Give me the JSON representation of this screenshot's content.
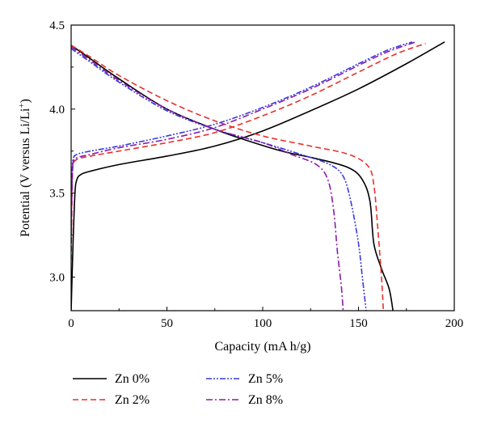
{
  "chart_data": {
    "type": "line",
    "title": "",
    "xlabel": "Capacity (mA h/g)",
    "ylabel": "Potential (V versus Li/Li",
    "ylabel_sup": "+",
    "ylabel_end": ")",
    "xlim": [
      0,
      200
    ],
    "ylim": [
      2.8,
      4.5
    ],
    "xticks": [
      "0",
      "50",
      "100",
      "150",
      "200"
    ],
    "yticks": [
      "3.0",
      "3.5",
      "4.0",
      "4.5"
    ],
    "grid": false,
    "legend_position": "bottom",
    "series": [
      {
        "name": "Zn 0%",
        "color": "#000000",
        "dash": "solid",
        "charge": [
          [
            0,
            2.8
          ],
          [
            1,
            3.2
          ],
          [
            2,
            3.5
          ],
          [
            3,
            3.58
          ],
          [
            5,
            3.61
          ],
          [
            10,
            3.63
          ],
          [
            25,
            3.67
          ],
          [
            50,
            3.72
          ],
          [
            75,
            3.78
          ],
          [
            100,
            3.87
          ],
          [
            125,
            3.99
          ],
          [
            150,
            4.12
          ],
          [
            175,
            4.27
          ],
          [
            195,
            4.4
          ]
        ],
        "discharge": [
          [
            0,
            4.38
          ],
          [
            10,
            4.3
          ],
          [
            25,
            4.18
          ],
          [
            50,
            4.0
          ],
          [
            75,
            3.88
          ],
          [
            90,
            3.82
          ],
          [
            110,
            3.75
          ],
          [
            130,
            3.7
          ],
          [
            145,
            3.65
          ],
          [
            152,
            3.58
          ],
          [
            156,
            3.45
          ],
          [
            158,
            3.2
          ],
          [
            162,
            3.05
          ],
          [
            166,
            2.93
          ],
          [
            168,
            2.8
          ]
        ]
      },
      {
        "name": "Zn 2%",
        "color": "#e8302a",
        "dash": "dashed",
        "charge": [
          [
            0,
            3.1
          ],
          [
            0.5,
            3.5
          ],
          [
            1,
            3.66
          ],
          [
            3,
            3.7
          ],
          [
            10,
            3.72
          ],
          [
            25,
            3.75
          ],
          [
            50,
            3.8
          ],
          [
            75,
            3.86
          ],
          [
            100,
            3.96
          ],
          [
            125,
            4.08
          ],
          [
            150,
            4.22
          ],
          [
            170,
            4.33
          ],
          [
            185,
            4.39
          ]
        ],
        "discharge": [
          [
            0,
            4.38
          ],
          [
            10,
            4.31
          ],
          [
            25,
            4.2
          ],
          [
            50,
            4.05
          ],
          [
            75,
            3.93
          ],
          [
            100,
            3.84
          ],
          [
            125,
            3.78
          ],
          [
            145,
            3.73
          ],
          [
            155,
            3.66
          ],
          [
            158,
            3.55
          ],
          [
            160,
            3.3
          ],
          [
            162,
            3.0
          ],
          [
            163,
            2.8
          ]
        ]
      },
      {
        "name": "Zn 5%",
        "color": "#3a3ae0",
        "dash": "dash-dot-dot",
        "charge": [
          [
            0,
            3.3
          ],
          [
            0.5,
            3.6
          ],
          [
            1,
            3.7
          ],
          [
            3,
            3.73
          ],
          [
            10,
            3.75
          ],
          [
            25,
            3.78
          ],
          [
            50,
            3.84
          ],
          [
            75,
            3.91
          ],
          [
            100,
            4.01
          ],
          [
            125,
            4.13
          ],
          [
            150,
            4.27
          ],
          [
            165,
            4.35
          ],
          [
            178,
            4.4
          ]
        ],
        "discharge": [
          [
            0,
            4.36
          ],
          [
            10,
            4.28
          ],
          [
            25,
            4.16
          ],
          [
            50,
            3.99
          ],
          [
            75,
            3.88
          ],
          [
            100,
            3.8
          ],
          [
            120,
            3.73
          ],
          [
            135,
            3.67
          ],
          [
            142,
            3.6
          ],
          [
            146,
            3.45
          ],
          [
            150,
            3.2
          ],
          [
            152,
            3.0
          ],
          [
            154,
            2.8
          ]
        ]
      },
      {
        "name": "Zn 8%",
        "color": "#8a1aa8",
        "dash": "dash-dot",
        "charge": [
          [
            0,
            3.2
          ],
          [
            0.5,
            3.55
          ],
          [
            1,
            3.68
          ],
          [
            3,
            3.71
          ],
          [
            10,
            3.73
          ],
          [
            25,
            3.77
          ],
          [
            50,
            3.82
          ],
          [
            75,
            3.89
          ],
          [
            100,
            4.0
          ],
          [
            125,
            4.12
          ],
          [
            150,
            4.26
          ],
          [
            165,
            4.34
          ],
          [
            180,
            4.4
          ]
        ],
        "discharge": [
          [
            0,
            4.37
          ],
          [
            10,
            4.29
          ],
          [
            25,
            4.17
          ],
          [
            50,
            4.0
          ],
          [
            75,
            3.88
          ],
          [
            100,
            3.8
          ],
          [
            115,
            3.73
          ],
          [
            128,
            3.67
          ],
          [
            134,
            3.58
          ],
          [
            137,
            3.4
          ],
          [
            139,
            3.15
          ],
          [
            141,
            2.95
          ],
          [
            142,
            2.8
          ]
        ]
      }
    ]
  }
}
